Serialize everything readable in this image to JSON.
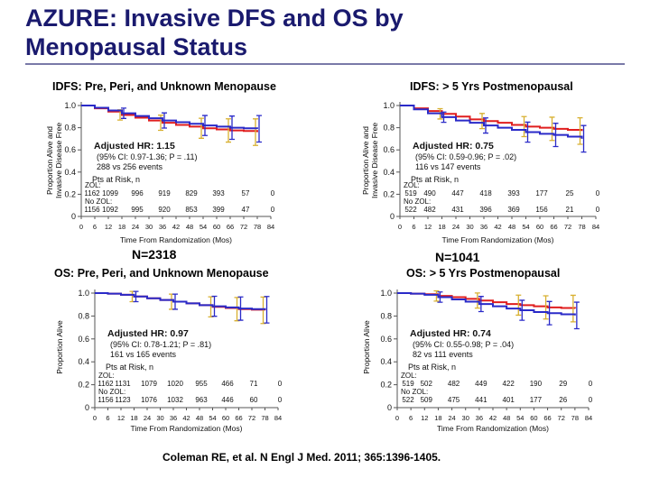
{
  "slide": {
    "title_line1": "AZURE: Invasive DFS and OS by",
    "title_line2": "Menopausal Status",
    "citation": "Coleman RE, et al. N Engl J Med. 2011; 365:1396-1405.",
    "n_left": "N=2318",
    "n_right": "N=1041"
  },
  "colors": {
    "zol": "#e01e1e",
    "control": "#2a2ac8",
    "errorbar": "#d8b030"
  },
  "chart_data": [
    {
      "id": "idfs-pre",
      "type": "line",
      "title": "IDFS: Pre, Peri, and Unknown Menopause",
      "ylabel_line1": "Proportion Alive and",
      "ylabel_line2": "Invasive Disease Free",
      "xlabel": "Time From Randomization (Mos)",
      "xlim": [
        0,
        84
      ],
      "ylim": [
        0,
        1.0
      ],
      "y_ticks": [
        "0",
        "0.2",
        "0.4",
        "0.6",
        "0.8",
        "1.0"
      ],
      "x_ticks": [
        "0",
        "6",
        "12",
        "18",
        "24",
        "30",
        "36",
        "42",
        "48",
        "54",
        "60",
        "66",
        "72",
        "78",
        "84"
      ],
      "hr": "Adjusted HR: 1.15",
      "ci": "(95% CI: 0.97-1.36; P = .11)",
      "events": "288 vs 256 events",
      "pts_label": "Pts at Risk, n",
      "zol_label": "ZOL:",
      "nozol_label": "No ZOL:",
      "zol_risk": [
        "1162",
        "1099",
        "996",
        "919",
        "829",
        "393",
        "57",
        "0"
      ],
      "nozol_risk": [
        "1156",
        "1092",
        "995",
        "920",
        "853",
        "399",
        "47",
        "0"
      ],
      "series": [
        {
          "name": "ZOL",
          "x": [
            0,
            6,
            12,
            18,
            24,
            30,
            36,
            42,
            48,
            54,
            60,
            66,
            72,
            78
          ],
          "y": [
            1.0,
            0.975,
            0.945,
            0.915,
            0.89,
            0.865,
            0.845,
            0.825,
            0.81,
            0.795,
            0.785,
            0.775,
            0.77,
            0.76
          ]
        },
        {
          "name": "No ZOL",
          "x": [
            0,
            6,
            12,
            18,
            24,
            30,
            36,
            42,
            48,
            54,
            60,
            66,
            72,
            78
          ],
          "y": [
            1.0,
            0.98,
            0.955,
            0.93,
            0.905,
            0.885,
            0.865,
            0.85,
            0.835,
            0.82,
            0.81,
            0.8,
            0.795,
            0.79
          ]
        }
      ]
    },
    {
      "id": "idfs-post",
      "type": "line",
      "title": "IDFS: > 5 Yrs Postmenopausal",
      "ylabel_line1": "Proportion Alive and",
      "ylabel_line2": "Invasive Disease Free",
      "xlabel": "Time From Randomization (Mos)",
      "xlim": [
        0,
        84
      ],
      "ylim": [
        0,
        1.0
      ],
      "y_ticks": [
        "0",
        "0.2",
        "0.4",
        "0.6",
        "0.8",
        "1.0"
      ],
      "x_ticks": [
        "0",
        "6",
        "12",
        "18",
        "24",
        "30",
        "36",
        "42",
        "48",
        "54",
        "60",
        "66",
        "72",
        "78",
        "84"
      ],
      "hr": "Adjusted HR: 0.75",
      "ci": "(95% CI: 0.59-0.96; P = .02)",
      "events": "116 vs 147 events",
      "pts_label": "Pts at Risk, n",
      "zol_label": "ZOL:",
      "nozol_label": "No ZOL:",
      "zol_risk": [
        "519",
        "490",
        "447",
        "418",
        "393",
        "177",
        "25",
        "0"
      ],
      "nozol_risk": [
        "522",
        "482",
        "431",
        "396",
        "369",
        "156",
        "21",
        "0"
      ],
      "series": [
        {
          "name": "ZOL",
          "x": [
            0,
            6,
            12,
            18,
            24,
            30,
            36,
            42,
            48,
            54,
            60,
            66,
            72,
            78
          ],
          "y": [
            1.0,
            0.975,
            0.95,
            0.925,
            0.9,
            0.875,
            0.86,
            0.845,
            0.825,
            0.81,
            0.8,
            0.79,
            0.78,
            0.77
          ]
        },
        {
          "name": "No ZOL",
          "x": [
            0,
            6,
            12,
            18,
            24,
            30,
            36,
            42,
            48,
            54,
            60,
            66,
            72,
            78
          ],
          "y": [
            1.0,
            0.965,
            0.93,
            0.895,
            0.865,
            0.845,
            0.82,
            0.8,
            0.78,
            0.76,
            0.745,
            0.735,
            0.72,
            0.7
          ]
        }
      ]
    },
    {
      "id": "os-pre",
      "type": "line",
      "title": "OS: Pre, Peri, and Unknown Menopause",
      "ylabel_line1": "Proportion Alive",
      "ylabel_line2": "",
      "xlabel": "Time From Randomization (Mos)",
      "xlim": [
        0,
        84
      ],
      "ylim": [
        0,
        1.0
      ],
      "y_ticks": [
        "0",
        "0.2",
        "0.4",
        "0.6",
        "0.8",
        "1.0"
      ],
      "x_ticks": [
        "0",
        "6",
        "12",
        "18",
        "24",
        "30",
        "36",
        "42",
        "48",
        "54",
        "60",
        "66",
        "72",
        "78",
        "84"
      ],
      "hr": "Adjusted HR: 0.97",
      "ci": "(95% CI: 0.78-1.21; P = .81)",
      "events": "161 vs 165 events",
      "pts_label": "Pts at Risk, n",
      "zol_label": "ZOL:",
      "nozol_label": "No ZOL:",
      "zol_risk": [
        "1162",
        "1131",
        "1079",
        "1020",
        "955",
        "466",
        "71",
        "0"
      ],
      "nozol_risk": [
        "1156",
        "1123",
        "1076",
        "1032",
        "963",
        "446",
        "60",
        "0"
      ],
      "series": [
        {
          "name": "ZOL",
          "x": [
            0,
            6,
            12,
            18,
            24,
            30,
            36,
            42,
            48,
            54,
            60,
            66,
            72,
            78
          ],
          "y": [
            1.0,
            0.995,
            0.985,
            0.97,
            0.955,
            0.94,
            0.925,
            0.91,
            0.895,
            0.88,
            0.87,
            0.86,
            0.855,
            0.85
          ]
        },
        {
          "name": "No ZOL",
          "x": [
            0,
            6,
            12,
            18,
            24,
            30,
            36,
            42,
            48,
            54,
            60,
            66,
            72,
            78
          ],
          "y": [
            1.0,
            0.995,
            0.985,
            0.97,
            0.955,
            0.94,
            0.925,
            0.91,
            0.895,
            0.885,
            0.875,
            0.865,
            0.86,
            0.855
          ]
        }
      ]
    },
    {
      "id": "os-post",
      "type": "line",
      "title": "OS: > 5 Yrs Postmenopausal",
      "ylabel_line1": "Proportion Alive",
      "ylabel_line2": "",
      "xlabel": "Time From Randomization (Mos)",
      "xlim": [
        0,
        84
      ],
      "ylim": [
        0,
        1.0
      ],
      "y_ticks": [
        "0",
        "0.2",
        "0.4",
        "0.6",
        "0.8",
        "1.0"
      ],
      "x_ticks": [
        "0",
        "6",
        "12",
        "18",
        "24",
        "30",
        "36",
        "42",
        "48",
        "54",
        "60",
        "66",
        "72",
        "78",
        "84"
      ],
      "hr": "Adjusted HR: 0.74",
      "ci": "(95% CI: 0.55-0.98; P = .04)",
      "events": "82 vs 111 events",
      "pts_label": "Pts at Risk, n",
      "zol_label": "ZOL:",
      "nozol_label": "No ZOL:",
      "zol_risk": [
        "519",
        "502",
        "482",
        "449",
        "422",
        "190",
        "29",
        "0"
      ],
      "nozol_risk": [
        "522",
        "509",
        "475",
        "441",
        "401",
        "177",
        "26",
        "0"
      ],
      "series": [
        {
          "name": "ZOL",
          "x": [
            0,
            6,
            12,
            18,
            24,
            30,
            36,
            42,
            48,
            54,
            60,
            66,
            72,
            78
          ],
          "y": [
            1.0,
            0.995,
            0.99,
            0.975,
            0.965,
            0.95,
            0.935,
            0.92,
            0.905,
            0.895,
            0.885,
            0.875,
            0.87,
            0.865
          ]
        },
        {
          "name": "No ZOL",
          "x": [
            0,
            6,
            12,
            18,
            24,
            30,
            36,
            42,
            48,
            54,
            60,
            66,
            72,
            78
          ],
          "y": [
            1.0,
            0.995,
            0.985,
            0.965,
            0.945,
            0.925,
            0.905,
            0.885,
            0.865,
            0.85,
            0.835,
            0.825,
            0.815,
            0.805
          ]
        }
      ]
    }
  ]
}
